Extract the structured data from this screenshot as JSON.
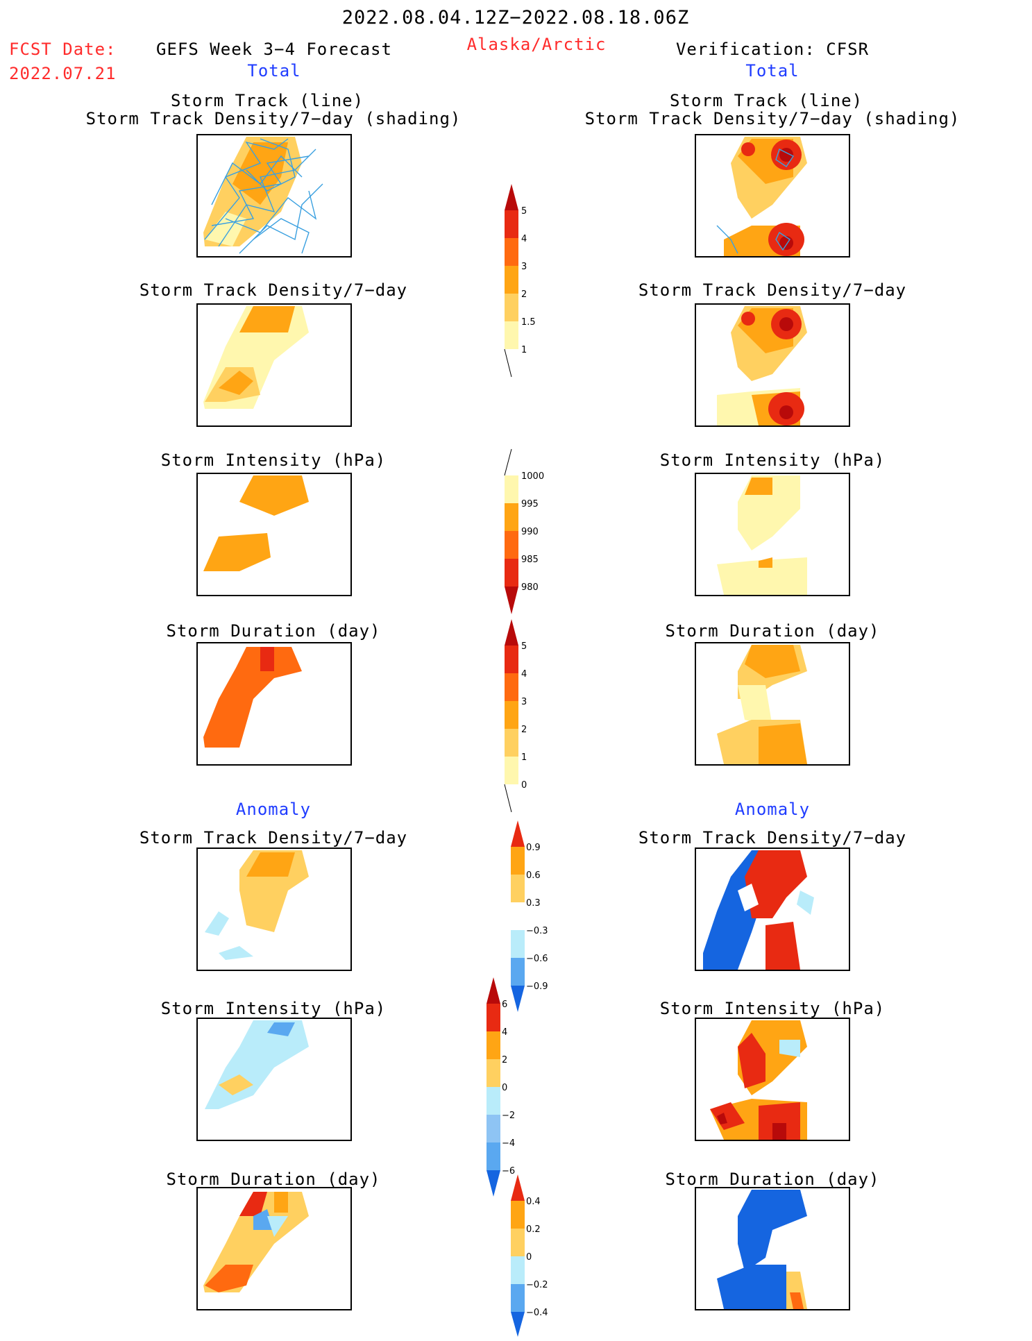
{
  "header": {
    "period": "2022.08.04.12Z−2022.08.18.06Z",
    "fcst_label": "FCST Date:",
    "fcst_date": "2022.07.21",
    "forecast_title": "GEFS Week 3−4 Forecast",
    "region": "Alaska/Arctic",
    "verification_title": "Verification: CFSR",
    "left_total": "Total",
    "right_total": "Total",
    "left_anomaly": "Anomaly",
    "right_anomaly": "Anomaly"
  },
  "panels": {
    "p1_title_a": "Storm Track (line)",
    "p1_title_b": "Storm Track Density/7−day (shading)",
    "p2_title": "Storm Track Density/7−day",
    "p3_title": "Storm Intensity (hPa)",
    "p4_title": "Storm Duration (day)",
    "p5_title": "Storm Track Density/7−day",
    "p6_title": "Storm Intensity (hPa)",
    "p7_title": "Storm Duration (day)"
  },
  "colorbars": {
    "density_total": [
      "5",
      "4",
      "3",
      "2",
      "1.5",
      "1"
    ],
    "intensity_total": [
      "1000",
      "995",
      "990",
      "985",
      "980"
    ],
    "duration_total": [
      "5",
      "4",
      "3",
      "2",
      "1",
      "0"
    ],
    "density_anom": [
      "0.9",
      "0.6",
      "0.3",
      "−0.3",
      "−0.6",
      "−0.9"
    ],
    "intensity_anom": [
      "6",
      "4",
      "2",
      "0",
      "−2",
      "−4",
      "−6"
    ],
    "duration_anom": [
      "0.4",
      "0.2",
      "0",
      "−0.2",
      "−0.4"
    ]
  },
  "colors": {
    "red_label": "#ff2b2b",
    "blue_label": "#1f3cff",
    "pale_yellow": "#fff7ae",
    "light_orange": "#ffd060",
    "orange": "#ffa514",
    "dark_orange": "#ff6a10",
    "red": "#e82a12",
    "dark_red": "#b80a0a",
    "light_blue": "#b9ecfa",
    "mid_blue": "#5aa8f0",
    "blue": "#1565e0",
    "track_line": "#3aa0e0"
  }
}
